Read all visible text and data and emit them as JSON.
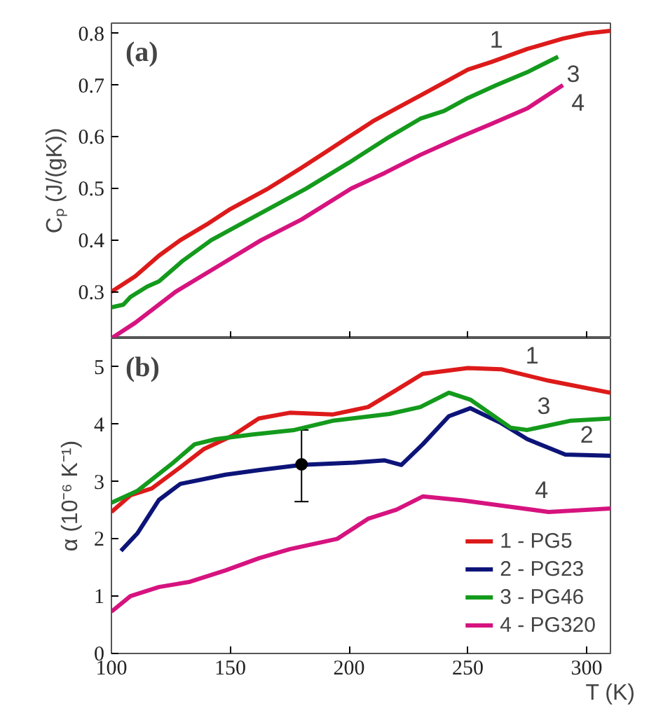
{
  "chart_data": [
    {
      "type": "line",
      "ylabel": "Cₚ (J/(gK))",
      "annotations": [
        "(a)",
        {
          "text": "1",
          "x": 262,
          "y": 0.748
        },
        {
          "text": "3",
          "x": 288,
          "y": 0.755
        },
        {
          "text": "4",
          "x": 290,
          "y": 0.7
        }
      ],
      "xlim": [
        100,
        310
      ],
      "xticks": [
        100,
        150,
        200,
        250,
        300
      ],
      "ylim": [
        0.21,
        0.82
      ],
      "yticks": [
        0.3,
        0.4,
        0.5,
        0.6,
        0.7,
        0.8
      ],
      "tick_labels": "y",
      "grid": false,
      "series": [
        {
          "color": "#dd1a1a",
          "x": [
            100,
            110,
            120,
            129,
            140,
            150,
            166,
            180,
            190,
            200,
            210,
            220,
            230,
            238,
            250,
            260,
            275,
            290,
            300,
            310
          ],
          "values": [
            0.3,
            0.33,
            0.37,
            0.4,
            0.43,
            0.46,
            0.5,
            0.54,
            0.57,
            0.6,
            0.63,
            0.655,
            0.68,
            0.7,
            0.73,
            0.745,
            0.77,
            0.79,
            0.8,
            0.805
          ]
        },
        {
          "color": "#149a1c",
          "x": [
            100,
            105,
            108,
            115,
            120,
            130,
            142,
            160,
            182,
            200,
            217,
            230,
            240,
            250,
            262,
            275,
            288
          ],
          "values": [
            0.27,
            0.275,
            0.29,
            0.31,
            0.32,
            0.36,
            0.4,
            0.445,
            0.5,
            0.55,
            0.6,
            0.635,
            0.65,
            0.675,
            0.7,
            0.725,
            0.755
          ]
        },
        {
          "color": "#d6137f",
          "x": [
            100,
            110,
            127,
            145,
            163,
            180,
            201,
            215,
            230,
            247,
            260,
            275,
            290
          ],
          "values": [
            0.21,
            0.24,
            0.3,
            0.35,
            0.4,
            0.44,
            0.5,
            0.53,
            0.565,
            0.6,
            0.625,
            0.655,
            0.7
          ]
        }
      ]
    },
    {
      "type": "line",
      "xlabel": "T (K)",
      "ylabel": "α (10⁻⁶ K⁻¹)",
      "annotations": [
        "(b)",
        {
          "text": "1",
          "x": 277,
          "y": 4.84
        },
        {
          "text": "3",
          "x": 282,
          "y": 3.96
        },
        {
          "text": "2",
          "x": 300,
          "y": 3.46
        },
        {
          "text": "4",
          "x": 281,
          "y": 2.49
        }
      ],
      "xlim": [
        100,
        310
      ],
      "xticks": [
        100,
        150,
        200,
        250,
        300
      ],
      "ylim": [
        0,
        5.5
      ],
      "yticks": [
        0,
        1,
        2,
        3,
        4,
        5
      ],
      "grid": false,
      "legend": "bottom right",
      "series": [
        {
          "name": "1 - PG5",
          "color": "#dd1a1a",
          "x": [
            100,
            108,
            117,
            129,
            139,
            151,
            162,
            175,
            193,
            208,
            220,
            231,
            250,
            264,
            284,
            310
          ],
          "values": [
            2.47,
            2.76,
            2.88,
            3.25,
            3.57,
            3.8,
            4.1,
            4.2,
            4.17,
            4.3,
            4.6,
            4.88,
            4.98,
            4.96,
            4.76,
            4.55
          ]
        },
        {
          "name": "2 - PG23",
          "color": "#0d1478",
          "x": [
            104,
            111,
            120,
            129,
            148,
            162,
            180,
            202,
            215,
            222,
            231,
            242,
            251,
            264,
            275,
            291,
            310
          ],
          "values": [
            1.79,
            2.1,
            2.68,
            2.96,
            3.12,
            3.2,
            3.29,
            3.33,
            3.37,
            3.29,
            3.65,
            4.14,
            4.28,
            4.02,
            3.74,
            3.47,
            3.45
          ]
        },
        {
          "name": "3 - PG46",
          "color": "#149a1c",
          "x": [
            100,
            111,
            126,
            135,
            144,
            159,
            177,
            193,
            217,
            230,
            242,
            251,
            268,
            275,
            293,
            310
          ],
          "values": [
            2.63,
            2.84,
            3.33,
            3.65,
            3.74,
            3.82,
            3.9,
            4.06,
            4.18,
            4.3,
            4.55,
            4.43,
            3.94,
            3.9,
            4.06,
            4.1
          ]
        },
        {
          "name": "4 - PG320",
          "color": "#d6137f",
          "x": [
            100,
            108,
            120,
            133,
            148,
            162,
            175,
            195,
            208,
            220,
            231,
            248,
            266,
            284,
            310
          ],
          "values": [
            0.73,
            1.0,
            1.16,
            1.25,
            1.45,
            1.66,
            1.82,
            2.0,
            2.35,
            2.51,
            2.74,
            2.67,
            2.57,
            2.47,
            2.53
          ]
        },
        {
          "type": "scatter",
          "color": "#000000",
          "x": [
            180
          ],
          "values": [
            3.3
          ],
          "errors": [
            [
              2.65,
              3.9
            ]
          ],
          "marker": "circle"
        }
      ]
    }
  ]
}
